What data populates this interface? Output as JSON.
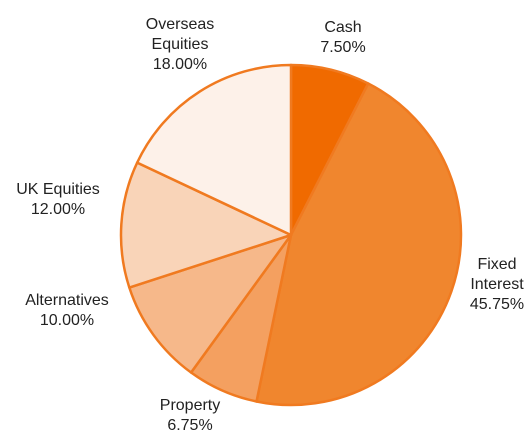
{
  "chart_data": {
    "type": "pie",
    "categories": [
      "Cash",
      "Fixed Interest",
      "Property",
      "Alternatives",
      "UK Equities",
      "Overseas Equities"
    ],
    "values": [
      7.5,
      45.75,
      6.75,
      10,
      12,
      18
    ],
    "value_labels": [
      "7.50%",
      "45.75%",
      "6.75%",
      "10.00%",
      "12.00%",
      "18.00%"
    ],
    "colors": [
      "#f06a00",
      "#f0862e",
      "#f4a060",
      "#f6b88a",
      "#f9d4b8",
      "#fdf1e9"
    ],
    "edge_color": "#f07a20"
  }
}
